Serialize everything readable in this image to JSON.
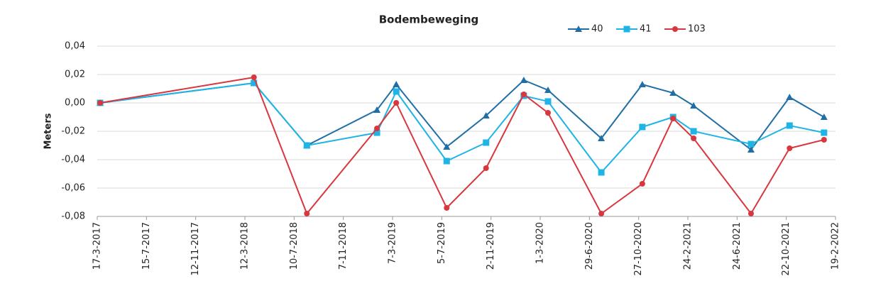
{
  "chart_data": {
    "type": "line",
    "title": "Bodembeweging",
    "y_label": "Meters",
    "x": [
      "2017-03-24",
      "2018-04-03",
      "2018-08-10",
      "2019-01-28",
      "2019-03-16",
      "2019-07-17",
      "2019-10-21",
      "2020-01-21",
      "2020-03-20",
      "2020-07-28",
      "2020-11-05",
      "2021-01-19",
      "2021-03-10",
      "2021-07-28",
      "2021-10-30",
      "2022-01-22"
    ],
    "series": [
      {
        "name": "40",
        "color": "#1f6fa6",
        "marker": "triangle",
        "values": [
          0,
          0.014,
          -0.03,
          -0.005,
          0.013,
          -0.031,
          -0.009,
          0.016,
          0.009,
          -0.025,
          0.013,
          0.007,
          -0.002,
          -0.033,
          0.004,
          -0.01
        ]
      },
      {
        "name": "41",
        "color": "#1eb4e6",
        "marker": "square",
        "values": [
          0,
          0.014,
          -0.03,
          -0.021,
          0.008,
          -0.041,
          -0.028,
          0.005,
          0.001,
          -0.049,
          -0.017,
          -0.01,
          -0.02,
          -0.029,
          -0.016,
          -0.021
        ]
      },
      {
        "name": "103",
        "color": "#d9363e",
        "marker": "circle",
        "values": [
          0,
          0.018,
          -0.078,
          -0.018,
          0.0,
          -0.074,
          -0.046,
          0.006,
          -0.007,
          -0.078,
          -0.057,
          -0.011,
          -0.025,
          -0.078,
          -0.032,
          -0.026
        ]
      }
    ],
    "xlim": [
      "2017-03-17",
      "2022-02-19"
    ],
    "xticks": [
      {
        "value": "2017-03-17",
        "label": "17-3-2017"
      },
      {
        "value": "2017-07-15",
        "label": "15-7-2017"
      },
      {
        "value": "2017-11-12",
        "label": "12-11-2017"
      },
      {
        "value": "2018-03-12",
        "label": "12-3-2018"
      },
      {
        "value": "2018-07-10",
        "label": "10-7-2018"
      },
      {
        "value": "2018-11-07",
        "label": "7-11-2018"
      },
      {
        "value": "2019-03-07",
        "label": "7-3-2019"
      },
      {
        "value": "2019-07-05",
        "label": "5-7-2019"
      },
      {
        "value": "2019-11-02",
        "label": "2-11-2019"
      },
      {
        "value": "2020-03-01",
        "label": "1-3-2020"
      },
      {
        "value": "2020-06-29",
        "label": "29-6-2020"
      },
      {
        "value": "2020-10-27",
        "label": "27-10-2020"
      },
      {
        "value": "2021-02-24",
        "label": "24-2-2021"
      },
      {
        "value": "2021-06-24",
        "label": "24-6-2021"
      },
      {
        "value": "2021-10-22",
        "label": "22-10-2021"
      },
      {
        "value": "2022-02-19",
        "label": "19-2-2022"
      }
    ],
    "ylim": [
      -0.08,
      0.04
    ],
    "yticks": [
      {
        "value": 0.04,
        "label": "0,04"
      },
      {
        "value": 0.02,
        "label": "0,02"
      },
      {
        "value": 0,
        "label": "0,00"
      },
      {
        "value": -0.02,
        "label": "-0,02"
      },
      {
        "value": -0.04,
        "label": "-0,04"
      },
      {
        "value": -0.06,
        "label": "-0,06"
      },
      {
        "value": -0.08,
        "label": "-0,08"
      }
    ],
    "grid": true,
    "legend": "top"
  }
}
